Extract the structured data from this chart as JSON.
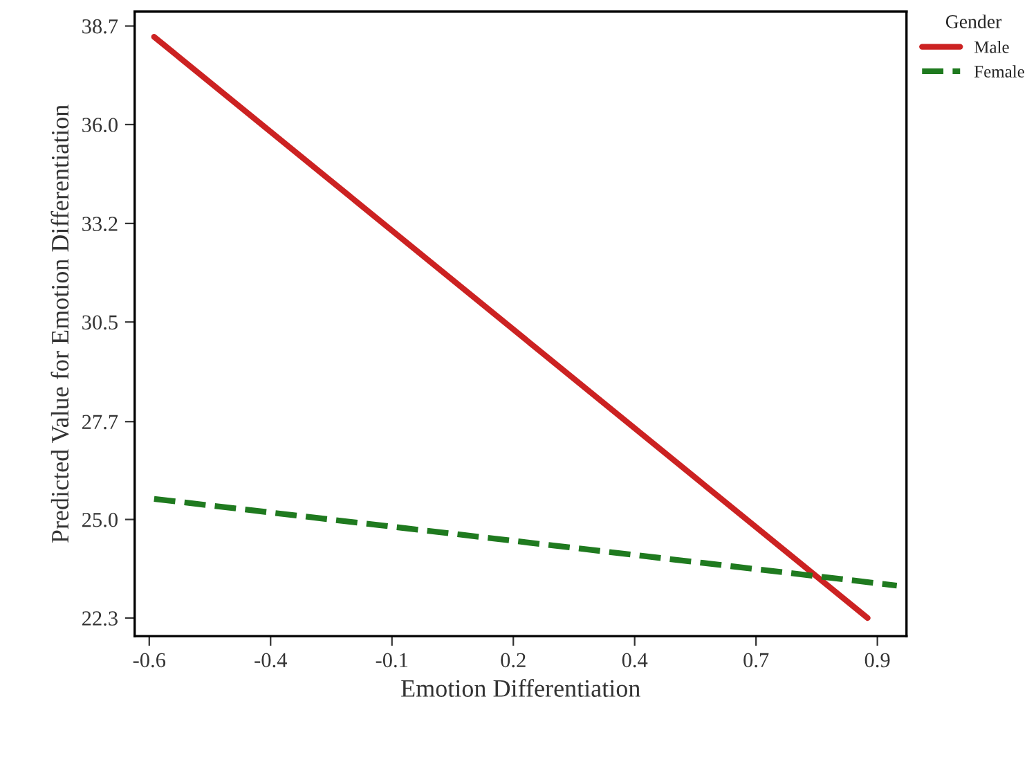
{
  "chart_data": {
    "type": "line",
    "xlabel": "Emotion Differentiation",
    "ylabel": "Predicted Value for Emotion Differentiation",
    "legend_title": "Gender",
    "legend": "top right",
    "xlim": [
      -0.63,
      0.96
    ],
    "ylim": [
      21.8,
      39.1
    ],
    "xticks": [
      {
        "value": -0.6,
        "label": "-0.6"
      },
      {
        "value": -0.35,
        "label": "-0.4"
      },
      {
        "value": -0.1,
        "label": "-0.1"
      },
      {
        "value": 0.15,
        "label": "0.2"
      },
      {
        "value": 0.4,
        "label": "0.4"
      },
      {
        "value": 0.65,
        "label": "0.7"
      },
      {
        "value": 0.9,
        "label": "0.9"
      }
    ],
    "yticks": [
      {
        "value": 22.3,
        "label": "22.3"
      },
      {
        "value": 25.03,
        "label": "25.0"
      },
      {
        "value": 27.74,
        "label": "27.7"
      },
      {
        "value": 30.5,
        "label": "30.5"
      },
      {
        "value": 33.23,
        "label": "33.2"
      },
      {
        "value": 35.97,
        "label": "36.0"
      },
      {
        "value": 38.7,
        "label": "38.7"
      }
    ],
    "grid": false,
    "series": [
      {
        "name": "Male",
        "color": "#cc2222",
        "line_style": "solid",
        "x": [
          -0.59,
          0.88
        ],
        "values": [
          38.4,
          22.3
        ]
      },
      {
        "name": "Female",
        "color": "#1f7a1f",
        "line_style": "dashed",
        "x": [
          -0.59,
          0.94
        ],
        "values": [
          25.6,
          23.2
        ]
      }
    ]
  }
}
